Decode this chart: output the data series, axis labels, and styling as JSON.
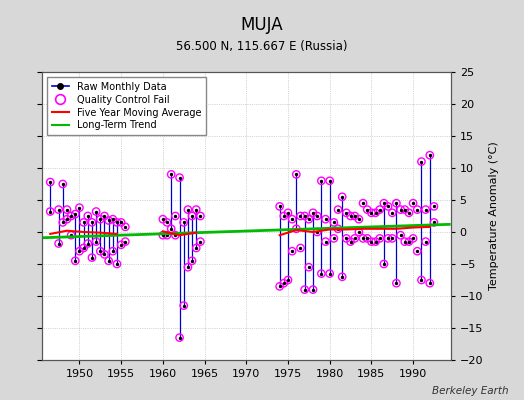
{
  "title": "MUJA",
  "subtitle": "56.500 N, 115.667 E (Russia)",
  "ylabel_right": "Temperature Anomaly (°C)",
  "watermark": "Berkeley Earth",
  "xlim": [
    1945.5,
    1994.5
  ],
  "ylim": [
    -20,
    25
  ],
  "yticks": [
    -20,
    -15,
    -10,
    -5,
    0,
    5,
    10,
    15,
    20,
    25
  ],
  "xticks": [
    1950,
    1955,
    1960,
    1965,
    1970,
    1975,
    1980,
    1985,
    1990
  ],
  "bg_color": "#d8d8d8",
  "plot_bg_color": "#ffffff",
  "grid_color": "#b0b0b0",
  "raw_line_color": "#0000cc",
  "raw_dot_color": "#000000",
  "qc_color": "#ff00ff",
  "moving_avg_color": "#ff0000",
  "trend_color": "#00bb00",
  "segments": [
    [
      [
        1946.5,
        3.2
      ],
      [
        1946.5,
        7.8
      ]
    ],
    [
      [
        1947.5,
        -1.8
      ],
      [
        1947.5,
        3.5
      ]
    ],
    [
      [
        1948.0,
        1.5
      ],
      [
        1948.0,
        7.5
      ]
    ],
    [
      [
        1949.5,
        -4.5
      ],
      [
        1949.5,
        2.8
      ]
    ],
    [
      [
        1950.0,
        -3.0
      ],
      [
        1950.0,
        3.8
      ]
    ],
    [
      [
        1950.5,
        -2.5
      ],
      [
        1950.5,
        1.5
      ]
    ],
    [
      [
        1951.0,
        -1.8
      ],
      [
        1951.0,
        2.5
      ]
    ],
    [
      [
        1951.5,
        -4.0
      ],
      [
        1951.5,
        1.5
      ]
    ],
    [
      [
        1952.0,
        -1.5
      ],
      [
        1952.0,
        3.2
      ]
    ],
    [
      [
        1952.5,
        -3.0
      ],
      [
        1952.5,
        2.0
      ]
    ],
    [
      [
        1953.0,
        -3.5
      ],
      [
        1953.0,
        2.5
      ]
    ],
    [
      [
        1953.5,
        -4.5
      ],
      [
        1953.5,
        1.8
      ]
    ],
    [
      [
        1954.0,
        -3.0
      ],
      [
        1954.0,
        2.0
      ]
    ],
    [
      [
        1954.5,
        -5.0
      ],
      [
        1954.5,
        1.5
      ]
    ],
    [
      [
        1961.0,
        0.5
      ],
      [
        1961.0,
        9.0
      ]
    ],
    [
      [
        1962.0,
        -16.5
      ],
      [
        1962.0,
        8.5
      ]
    ],
    [
      [
        1962.5,
        -11.5
      ],
      [
        1962.5,
        1.5
      ]
    ],
    [
      [
        1963.0,
        -5.5
      ],
      [
        1963.0,
        3.5
      ]
    ],
    [
      [
        1963.5,
        -4.5
      ],
      [
        1963.5,
        2.5
      ]
    ],
    [
      [
        1964.0,
        -2.5
      ],
      [
        1964.0,
        3.5
      ]
    ],
    [
      [
        1974.0,
        -8.5
      ],
      [
        1974.0,
        4.0
      ]
    ],
    [
      [
        1975.0,
        -7.5
      ],
      [
        1975.0,
        3.0
      ]
    ],
    [
      [
        1976.0,
        0.5
      ],
      [
        1976.0,
        9.0
      ]
    ],
    [
      [
        1977.0,
        -9.0
      ],
      [
        1977.0,
        2.5
      ]
    ],
    [
      [
        1978.0,
        -9.0
      ],
      [
        1978.0,
        3.0
      ]
    ],
    [
      [
        1979.0,
        -6.5
      ],
      [
        1979.0,
        8.0
      ]
    ],
    [
      [
        1980.0,
        -6.5
      ],
      [
        1980.0,
        8.0
      ]
    ],
    [
      [
        1981.5,
        -7.0
      ],
      [
        1981.5,
        5.5
      ]
    ],
    [
      [
        1986.5,
        -5.0
      ],
      [
        1986.5,
        4.5
      ]
    ],
    [
      [
        1988.0,
        -8.0
      ],
      [
        1988.0,
        4.5
      ]
    ],
    [
      [
        1991.0,
        -7.5
      ],
      [
        1991.0,
        11.0
      ]
    ],
    [
      [
        1992.0,
        -8.0
      ],
      [
        1992.0,
        12.0
      ]
    ]
  ],
  "raw_points": [
    [
      1946.5,
      3.2
    ],
    [
      1946.5,
      7.8
    ],
    [
      1947.5,
      -1.8
    ],
    [
      1947.5,
      3.5
    ],
    [
      1948.0,
      1.5
    ],
    [
      1948.0,
      7.5
    ],
    [
      1948.5,
      2.0
    ],
    [
      1948.5,
      3.5
    ],
    [
      1949.0,
      -0.5
    ],
    [
      1949.0,
      2.5
    ],
    [
      1949.5,
      -4.5
    ],
    [
      1949.5,
      2.8
    ],
    [
      1950.0,
      -3.0
    ],
    [
      1950.0,
      3.8
    ],
    [
      1950.5,
      -2.5
    ],
    [
      1950.5,
      1.5
    ],
    [
      1951.0,
      -1.8
    ],
    [
      1951.0,
      2.5
    ],
    [
      1951.5,
      -4.0
    ],
    [
      1951.5,
      1.5
    ],
    [
      1952.0,
      -1.5
    ],
    [
      1952.0,
      3.2
    ],
    [
      1952.5,
      -3.0
    ],
    [
      1952.5,
      2.0
    ],
    [
      1953.0,
      -3.5
    ],
    [
      1953.0,
      2.5
    ],
    [
      1953.5,
      -4.5
    ],
    [
      1953.5,
      1.8
    ],
    [
      1954.0,
      -3.0
    ],
    [
      1954.0,
      2.0
    ],
    [
      1954.5,
      -5.0
    ],
    [
      1954.5,
      1.5
    ],
    [
      1955.0,
      -2.0
    ],
    [
      1955.0,
      1.5
    ],
    [
      1955.5,
      -1.5
    ],
    [
      1955.5,
      0.8
    ],
    [
      1960.0,
      -0.5
    ],
    [
      1960.0,
      2.0
    ],
    [
      1960.5,
      -0.5
    ],
    [
      1960.5,
      1.5
    ],
    [
      1961.0,
      0.5
    ],
    [
      1961.0,
      9.0
    ],
    [
      1961.5,
      -0.5
    ],
    [
      1961.5,
      2.5
    ],
    [
      1962.0,
      -16.5
    ],
    [
      1962.0,
      8.5
    ],
    [
      1962.5,
      -11.5
    ],
    [
      1962.5,
      1.5
    ],
    [
      1963.0,
      -5.5
    ],
    [
      1963.0,
      3.5
    ],
    [
      1963.5,
      -4.5
    ],
    [
      1963.5,
      2.5
    ],
    [
      1964.0,
      -2.5
    ],
    [
      1964.0,
      3.5
    ],
    [
      1964.5,
      -1.5
    ],
    [
      1964.5,
      2.5
    ],
    [
      1974.0,
      -8.5
    ],
    [
      1974.0,
      4.0
    ],
    [
      1974.5,
      -8.0
    ],
    [
      1974.5,
      2.5
    ],
    [
      1975.0,
      -7.5
    ],
    [
      1975.0,
      3.0
    ],
    [
      1975.5,
      -3.0
    ],
    [
      1975.5,
      2.0
    ],
    [
      1976.0,
      0.5
    ],
    [
      1976.0,
      9.0
    ],
    [
      1976.5,
      -2.5
    ],
    [
      1976.5,
      2.5
    ],
    [
      1977.0,
      -9.0
    ],
    [
      1977.0,
      2.5
    ],
    [
      1977.5,
      -5.5
    ],
    [
      1977.5,
      2.0
    ],
    [
      1978.0,
      -9.0
    ],
    [
      1978.0,
      3.0
    ],
    [
      1978.5,
      0.0
    ],
    [
      1978.5,
      2.5
    ],
    [
      1979.0,
      -6.5
    ],
    [
      1979.0,
      8.0
    ],
    [
      1979.5,
      -1.5
    ],
    [
      1979.5,
      2.0
    ],
    [
      1980.0,
      -6.5
    ],
    [
      1980.0,
      8.0
    ],
    [
      1980.5,
      -1.0
    ],
    [
      1980.5,
      1.5
    ],
    [
      1981.0,
      0.5
    ],
    [
      1981.0,
      3.5
    ],
    [
      1981.5,
      -7.0
    ],
    [
      1981.5,
      5.5
    ],
    [
      1982.0,
      -1.0
    ],
    [
      1982.0,
      3.0
    ],
    [
      1982.5,
      -1.5
    ],
    [
      1982.5,
      2.5
    ],
    [
      1983.0,
      -1.0
    ],
    [
      1983.0,
      2.5
    ],
    [
      1983.5,
      0.0
    ],
    [
      1983.5,
      2.0
    ],
    [
      1984.0,
      -1.0
    ],
    [
      1984.0,
      4.5
    ],
    [
      1984.5,
      -1.0
    ],
    [
      1984.5,
      3.5
    ],
    [
      1985.0,
      -1.5
    ],
    [
      1985.0,
      3.0
    ],
    [
      1985.5,
      -1.5
    ],
    [
      1985.5,
      3.0
    ],
    [
      1986.0,
      -1.0
    ],
    [
      1986.0,
      3.5
    ],
    [
      1986.5,
      -5.0
    ],
    [
      1986.5,
      4.5
    ],
    [
      1987.0,
      -1.0
    ],
    [
      1987.0,
      4.0
    ],
    [
      1987.5,
      -1.0
    ],
    [
      1987.5,
      3.0
    ],
    [
      1988.0,
      -8.0
    ],
    [
      1988.0,
      4.5
    ],
    [
      1988.5,
      -0.5
    ],
    [
      1988.5,
      3.5
    ],
    [
      1989.0,
      -1.5
    ],
    [
      1989.0,
      3.5
    ],
    [
      1989.5,
      -1.5
    ],
    [
      1989.5,
      3.0
    ],
    [
      1990.0,
      -1.0
    ],
    [
      1990.0,
      4.5
    ],
    [
      1990.5,
      -3.0
    ],
    [
      1990.5,
      3.5
    ],
    [
      1991.0,
      -7.5
    ],
    [
      1991.0,
      11.0
    ],
    [
      1991.5,
      -1.5
    ],
    [
      1991.5,
      3.5
    ],
    [
      1992.0,
      -8.0
    ],
    [
      1992.0,
      12.0
    ],
    [
      1992.5,
      1.5
    ],
    [
      1992.5,
      4.0
    ]
  ],
  "trend_x": [
    1945.5,
    1994.5
  ],
  "trend_y": [
    -0.9,
    1.2
  ],
  "moving_avg_segments": [
    [
      [
        1946.5,
        -0.3
      ],
      [
        1948.5,
        0.2
      ],
      [
        1950.5,
        0.0
      ],
      [
        1952.5,
        -0.1
      ],
      [
        1954.5,
        -0.3
      ]
    ],
    [
      [
        1960.0,
        0.1
      ],
      [
        1962.0,
        -0.5
      ],
      [
        1964.0,
        -0.1
      ]
    ],
    [
      [
        1974.0,
        -0.5
      ],
      [
        1976.0,
        0.3
      ],
      [
        1978.0,
        0.0
      ],
      [
        1980.0,
        0.4
      ],
      [
        1982.0,
        0.4
      ],
      [
        1984.0,
        0.5
      ],
      [
        1986.0,
        0.5
      ],
      [
        1988.0,
        0.5
      ],
      [
        1990.0,
        0.7
      ],
      [
        1992.0,
        0.8
      ]
    ]
  ]
}
